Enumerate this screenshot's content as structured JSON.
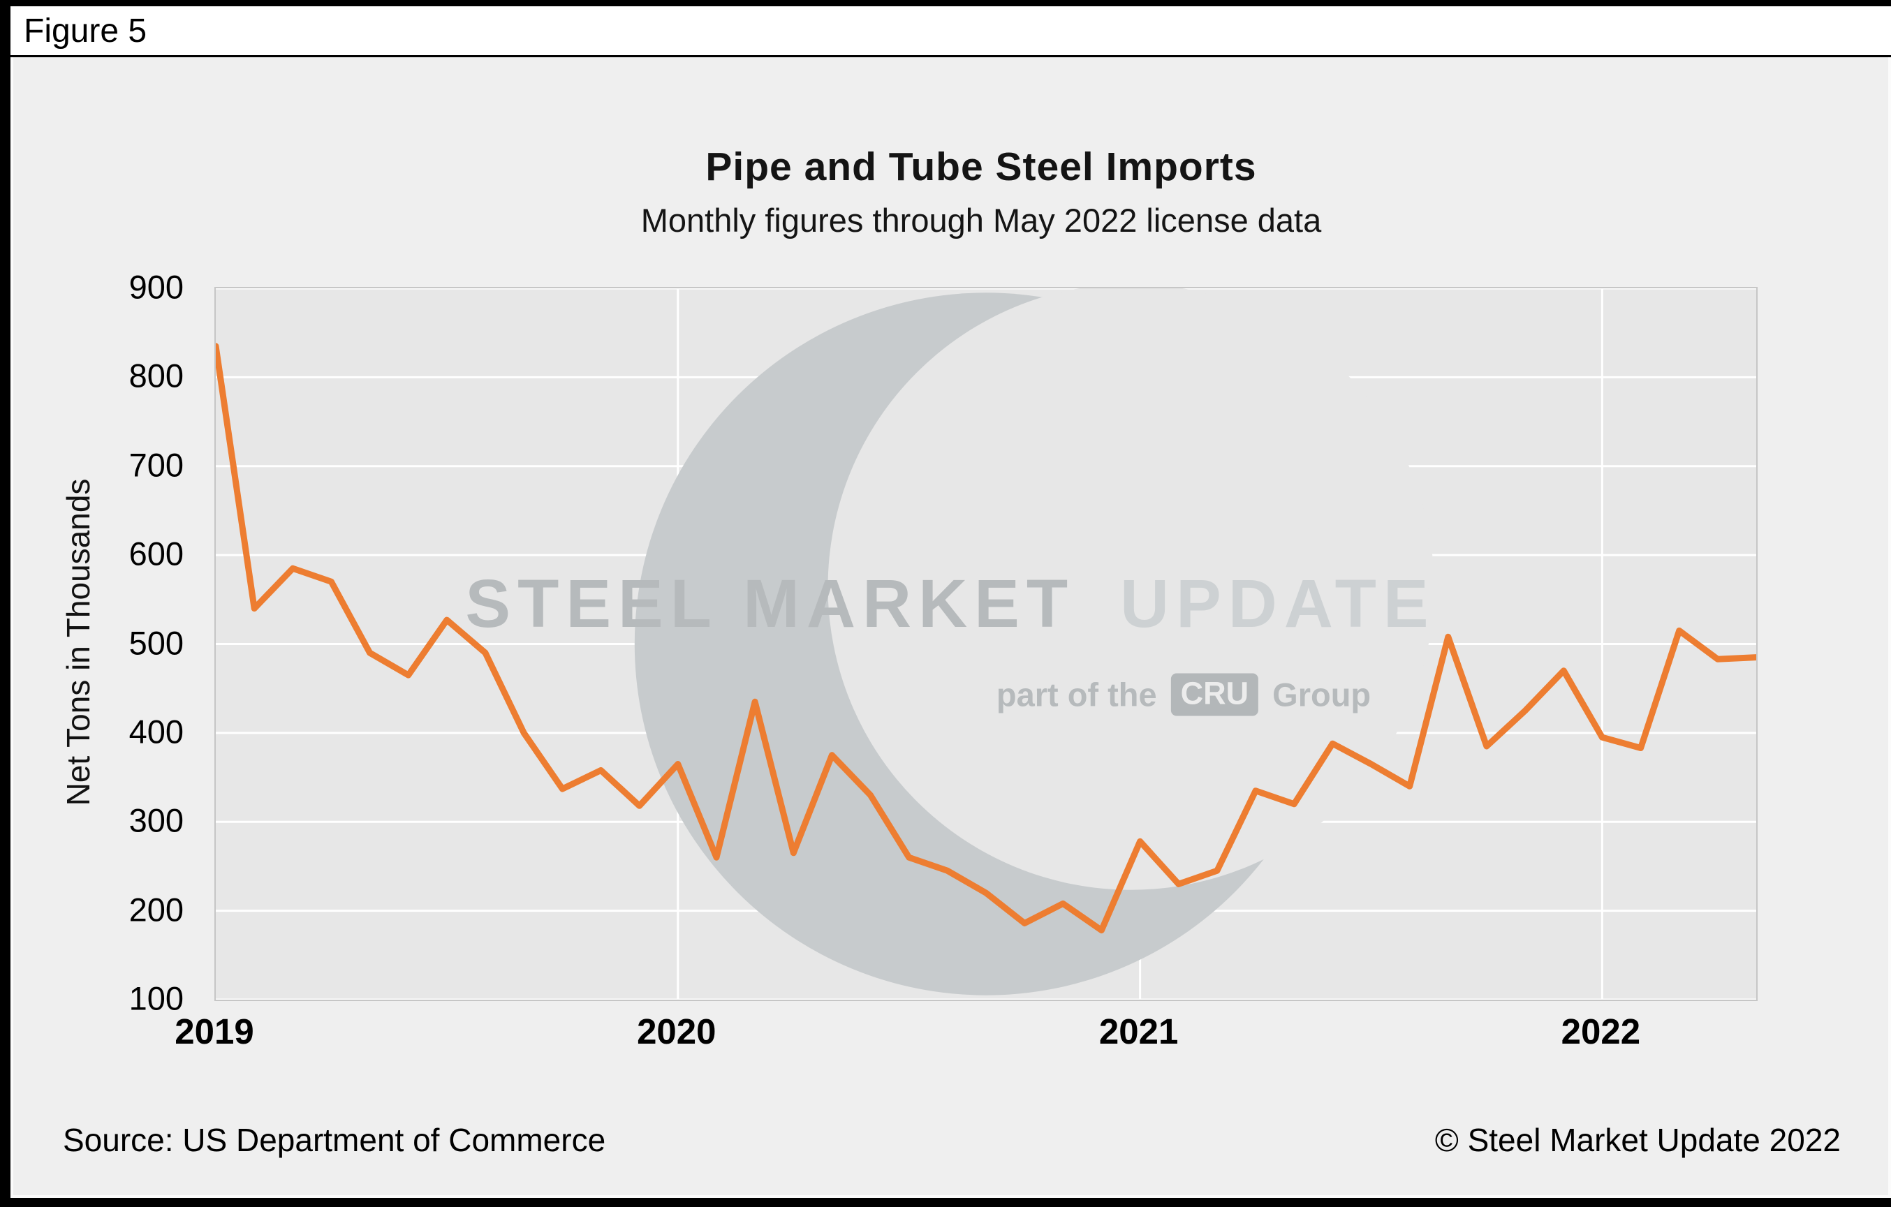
{
  "figure_label": "Figure 5",
  "chart_data": {
    "type": "line",
    "title": "Pipe and Tube Steel Imports",
    "subtitle": "Monthly figures through May 2022 license data",
    "ylabel": "Net Tons in Thousands",
    "ylim": [
      100,
      900
    ],
    "ytick_interval": 100,
    "grid": true,
    "legend": "none",
    "x_year_labels": [
      "2019",
      "2020",
      "2021",
      "2022"
    ],
    "months": [
      "2019-01",
      "2019-02",
      "2019-03",
      "2019-04",
      "2019-05",
      "2019-06",
      "2019-07",
      "2019-08",
      "2019-09",
      "2019-10",
      "2019-11",
      "2019-12",
      "2020-01",
      "2020-02",
      "2020-03",
      "2020-04",
      "2020-05",
      "2020-06",
      "2020-07",
      "2020-08",
      "2020-09",
      "2020-10",
      "2020-11",
      "2020-12",
      "2021-01",
      "2021-02",
      "2021-03",
      "2021-04",
      "2021-05",
      "2021-06",
      "2021-07",
      "2021-08",
      "2021-09",
      "2021-10",
      "2021-11",
      "2021-12",
      "2022-01",
      "2022-02",
      "2022-03",
      "2022-04",
      "2022-05"
    ],
    "series": [
      {
        "name": "Pipe and Tube Steel Imports (net tons, thousands)",
        "color": "#ED7D31",
        "values": [
          835,
          540,
          585,
          570,
          490,
          465,
          527,
          490,
          400,
          337,
          358,
          318,
          365,
          260,
          435,
          265,
          375,
          330,
          260,
          245,
          220,
          186,
          208,
          178,
          278,
          230,
          245,
          335,
          320,
          388,
          365,
          340,
          508,
          385,
          425,
          470,
          395,
          383,
          515,
          483,
          485
        ]
      }
    ]
  },
  "watermark": {
    "brand_strong": "STEEL MARKET",
    "brand_light": "UPDATE",
    "tagline_prefix": "part of the",
    "tagline_box": "CRU",
    "tagline_suffix": "Group"
  },
  "footer": {
    "source": "Source: US Department of Commerce",
    "copyright": "© Steel Market Update 2022"
  },
  "colors": {
    "series_line": "#ED7D31",
    "plot_background": "#e7e7e7",
    "page_background": "#efefef",
    "gridline": "#ffffff",
    "watermark_gray": "#c7cbcd"
  }
}
